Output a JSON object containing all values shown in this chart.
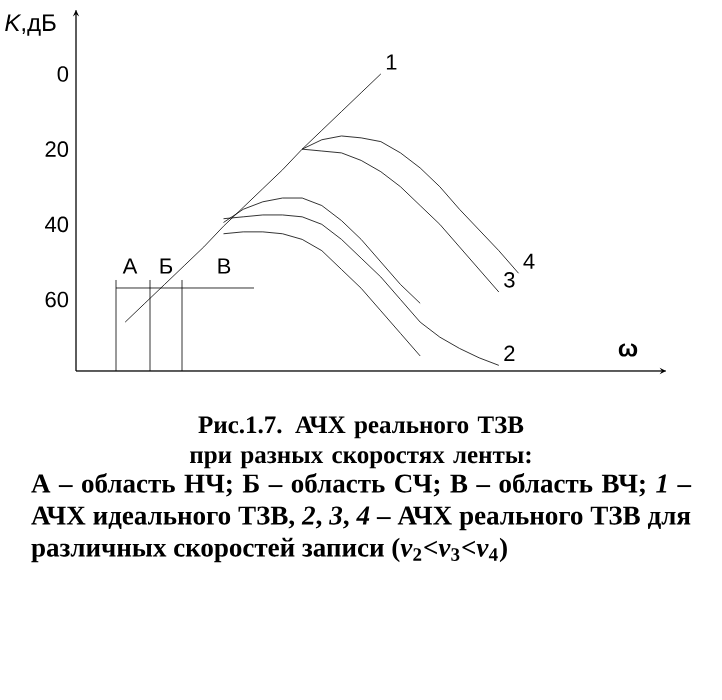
{
  "chart_data": {
    "type": "line",
    "ylabel": "*K*,дБ",
    "xlabel": "ω",
    "categories": [
      null,
      null,
      null,
      null,
      null,
      null,
      null,
      null,
      null,
      null,
      null,
      null,
      null,
      null,
      null,
      null,
      null,
      null,
      null,
      null,
      null,
      null,
      null,
      null,
      null,
      null,
      null,
      null,
      null,
      null
    ],
    "ylim": [
      79,
      -17
    ],
    "yticks": [
      0,
      20,
      40,
      60
    ],
    "series": [
      {
        "name": "1",
        "color": "#000000",
        "values": [
          null,
          null,
          66,
          61,
          56,
          51,
          46,
          40.5,
          35.5,
          30.5,
          25.5,
          20,
          15,
          10,
          5,
          0,
          null,
          null,
          null,
          null,
          null,
          null,
          null,
          null,
          null,
          null,
          null,
          null,
          null,
          null
        ]
      },
      {
        "name": "4",
        "color": "#000000",
        "values": [
          null,
          null,
          null,
          null,
          null,
          null,
          null,
          null,
          null,
          null,
          null,
          20,
          17.5,
          16.5,
          17,
          18,
          21,
          25,
          30,
          36,
          41.5,
          47,
          53,
          null,
          null,
          null,
          null,
          null,
          null,
          null
        ]
      },
      {
        "name": "3",
        "color": "#000000",
        "values": [
          null,
          null,
          null,
          null,
          null,
          null,
          null,
          null,
          null,
          null,
          null,
          20,
          20.5,
          21,
          23,
          26,
          30,
          35,
          40,
          46,
          52,
          58,
          null,
          null,
          null,
          null,
          null,
          null,
          null,
          null
        ]
      },
      {
        "color": "#000000",
        "values": [
          null,
          null,
          null,
          null,
          null,
          null,
          null,
          39.5,
          36,
          34,
          33,
          33,
          35,
          39,
          44,
          50,
          56,
          61,
          null,
          null,
          null,
          null,
          null,
          null,
          null,
          null,
          null,
          null,
          null,
          null
        ]
      },
      {
        "name": "2",
        "color": "#000000",
        "values": [
          null,
          null,
          null,
          null,
          null,
          null,
          null,
          38.5,
          38,
          37.5,
          37.5,
          38,
          40,
          44,
          49,
          54,
          60,
          66,
          70,
          73,
          75.5,
          77.5,
          null,
          null,
          null,
          null,
          null,
          null,
          null,
          null
        ]
      },
      {
        "color": "#000000",
        "values": [
          null,
          null,
          null,
          null,
          null,
          null,
          null,
          42.5,
          42,
          42,
          42.5,
          44,
          47,
          52,
          57,
          63,
          69,
          75,
          null,
          null,
          null,
          null,
          null,
          null,
          null,
          null,
          null,
          null,
          null,
          null
        ]
      }
    ],
    "annotations": [
      "А",
      "Б",
      "В",
      "**Рис.1.7. АЧХ реального ТЗВ при разных скоростях ленты:**",
      "**А – область НЧ; Б – область СЧ; В – область ВЧ; *1* – АЧХ идеального ТЗВ, *2*, *3*, *4* – АЧХ реального ТЗВ для различных скоростей записи (*v*$_{2}$<*v*$_{3}$<*v*$_{4}$)**"
    ]
  }
}
